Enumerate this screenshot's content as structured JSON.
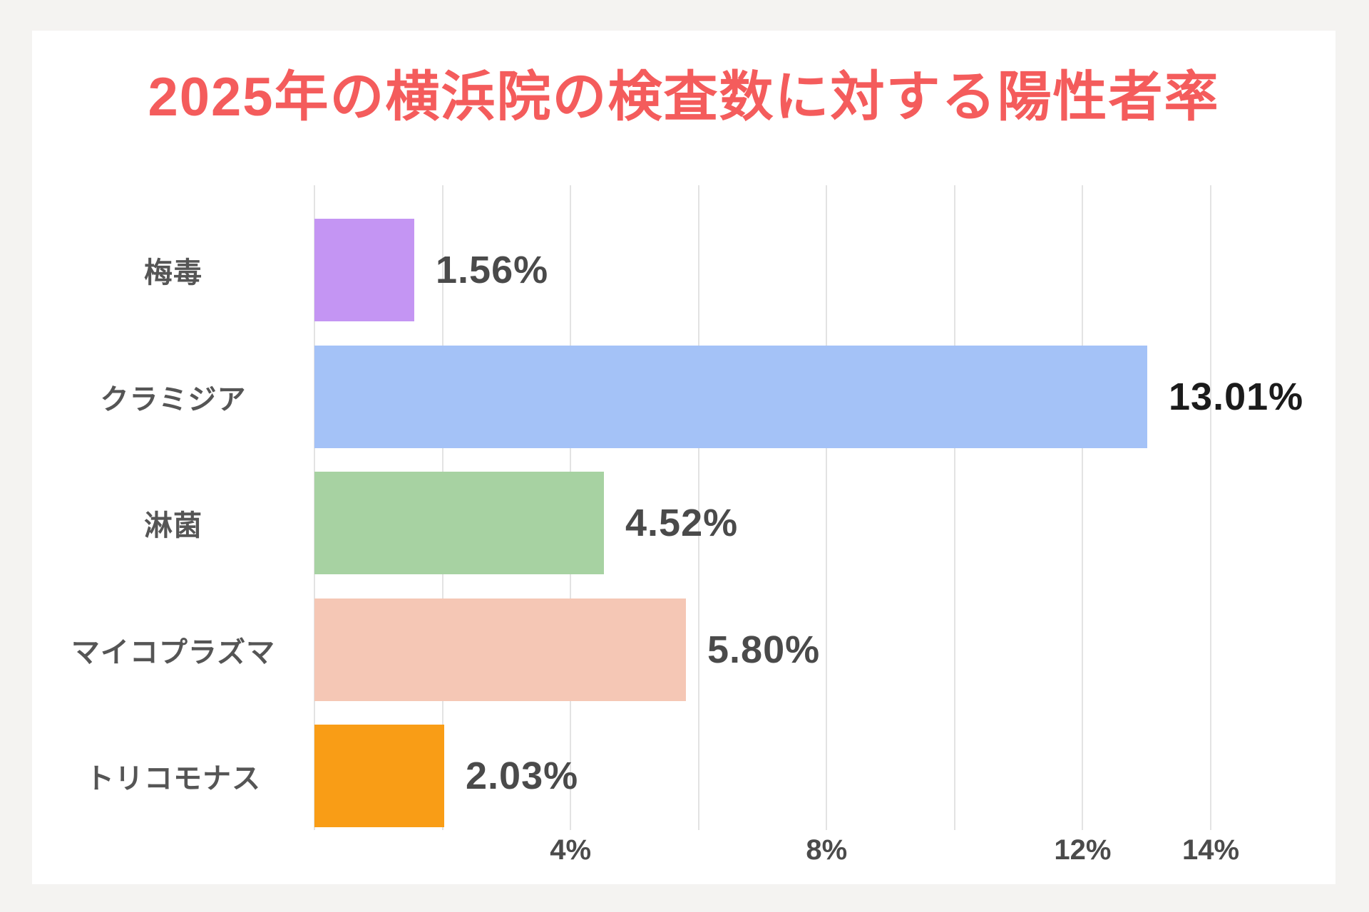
{
  "page": {
    "background_color": "#f4f3f1",
    "card_color": "#ffffff"
  },
  "chart_data": {
    "type": "bar",
    "orientation": "horizontal",
    "title": "2025年の横浜院の検査数に対する陽性者率",
    "title_color": "#f45c5c",
    "categories": [
      "梅毒",
      "クラミジア",
      "淋菌",
      "マイコプラズマ",
      "トリコモナス"
    ],
    "values": [
      1.56,
      13.01,
      4.52,
      5.8,
      2.03
    ],
    "value_labels": [
      "1.56%",
      "13.01%",
      "4.52%",
      "5.80%",
      "2.03%"
    ],
    "bar_colors": [
      "#c495f3",
      "#a4c2f7",
      "#a7d2a2",
      "#f5c7b5",
      "#f99d16"
    ],
    "value_label_colors": [
      "#4a4a4a",
      "#1b1b1b",
      "#4a4a4a",
      "#4a4a4a",
      "#4a4a4a"
    ],
    "category_label_color": "#555555",
    "tick_label_color": "#4b4b4b",
    "gridline_color": "#e3e3e3",
    "xlabel": "",
    "ylabel": "",
    "xlim": [
      0,
      14
    ],
    "gridline_percents": [
      0,
      2,
      4,
      6,
      8,
      10,
      12,
      14
    ],
    "x_ticks": [
      {
        "value": 4,
        "label": "4%"
      },
      {
        "value": 8,
        "label": "8%"
      },
      {
        "value": 12,
        "label": "12%"
      },
      {
        "value": 14,
        "label": "14%"
      }
    ],
    "grid": "vertical-on",
    "legend_position": "none"
  }
}
